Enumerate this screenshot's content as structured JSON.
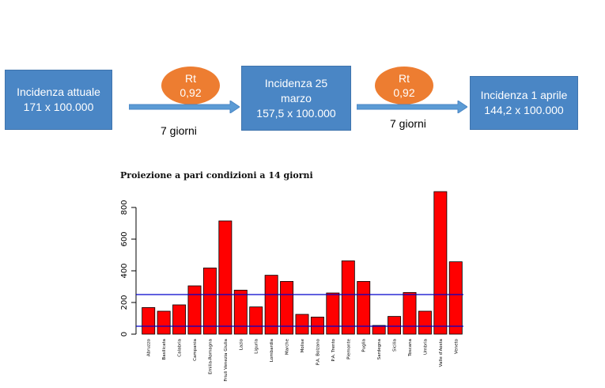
{
  "flow": {
    "box1": {
      "line1": "Incidenza attuale",
      "line2": "171 x 100.000"
    },
    "oval1": {
      "line1": "Rt",
      "line2": "0,92"
    },
    "days1": "7 giorni",
    "box2": {
      "line1": "Incidenza 25",
      "line2": "marzo",
      "line3": "157,5 x 100.000"
    },
    "oval2": {
      "line1": "Rt",
      "line2": "0,92"
    },
    "days2": "7 giorni",
    "box3": {
      "line1": "Incidenza 1 aprile",
      "line2": "144,2 x 100.000"
    },
    "colors": {
      "box": "#4a86c5",
      "oval": "#ed7d31",
      "arrow": "#5b9bd5"
    }
  },
  "chart_data": {
    "type": "bar",
    "title": "Proiezione a pari condizioni a 14 giorni",
    "xlabel": "",
    "ylabel": "",
    "categories": [
      "Abruzzo",
      "Basilicata",
      "Calabria",
      "Campania",
      "Emilia-Romagna",
      "Friuli Venezia Giulia",
      "Lazio",
      "Liguria",
      "Lombardia",
      "Marche",
      "Molise",
      "P.A. Bolzano",
      "P.A. Trento",
      "Piemonte",
      "Puglia",
      "Sardegna",
      "Sicilia",
      "Toscana",
      "Umbria",
      "Valle d'Aosta",
      "Veneto"
    ],
    "values": [
      168,
      145,
      185,
      305,
      418,
      715,
      278,
      172,
      372,
      333,
      125,
      108,
      260,
      463,
      333,
      55,
      112,
      263,
      145,
      905,
      457
    ],
    "ylim": [
      0,
      900
    ],
    "yticks": [
      0,
      200,
      400,
      600,
      800
    ],
    "reference_lines": [
      50,
      250
    ],
    "bar_color": "#ff0000",
    "line_color": "#0000cc",
    "grid": false
  }
}
